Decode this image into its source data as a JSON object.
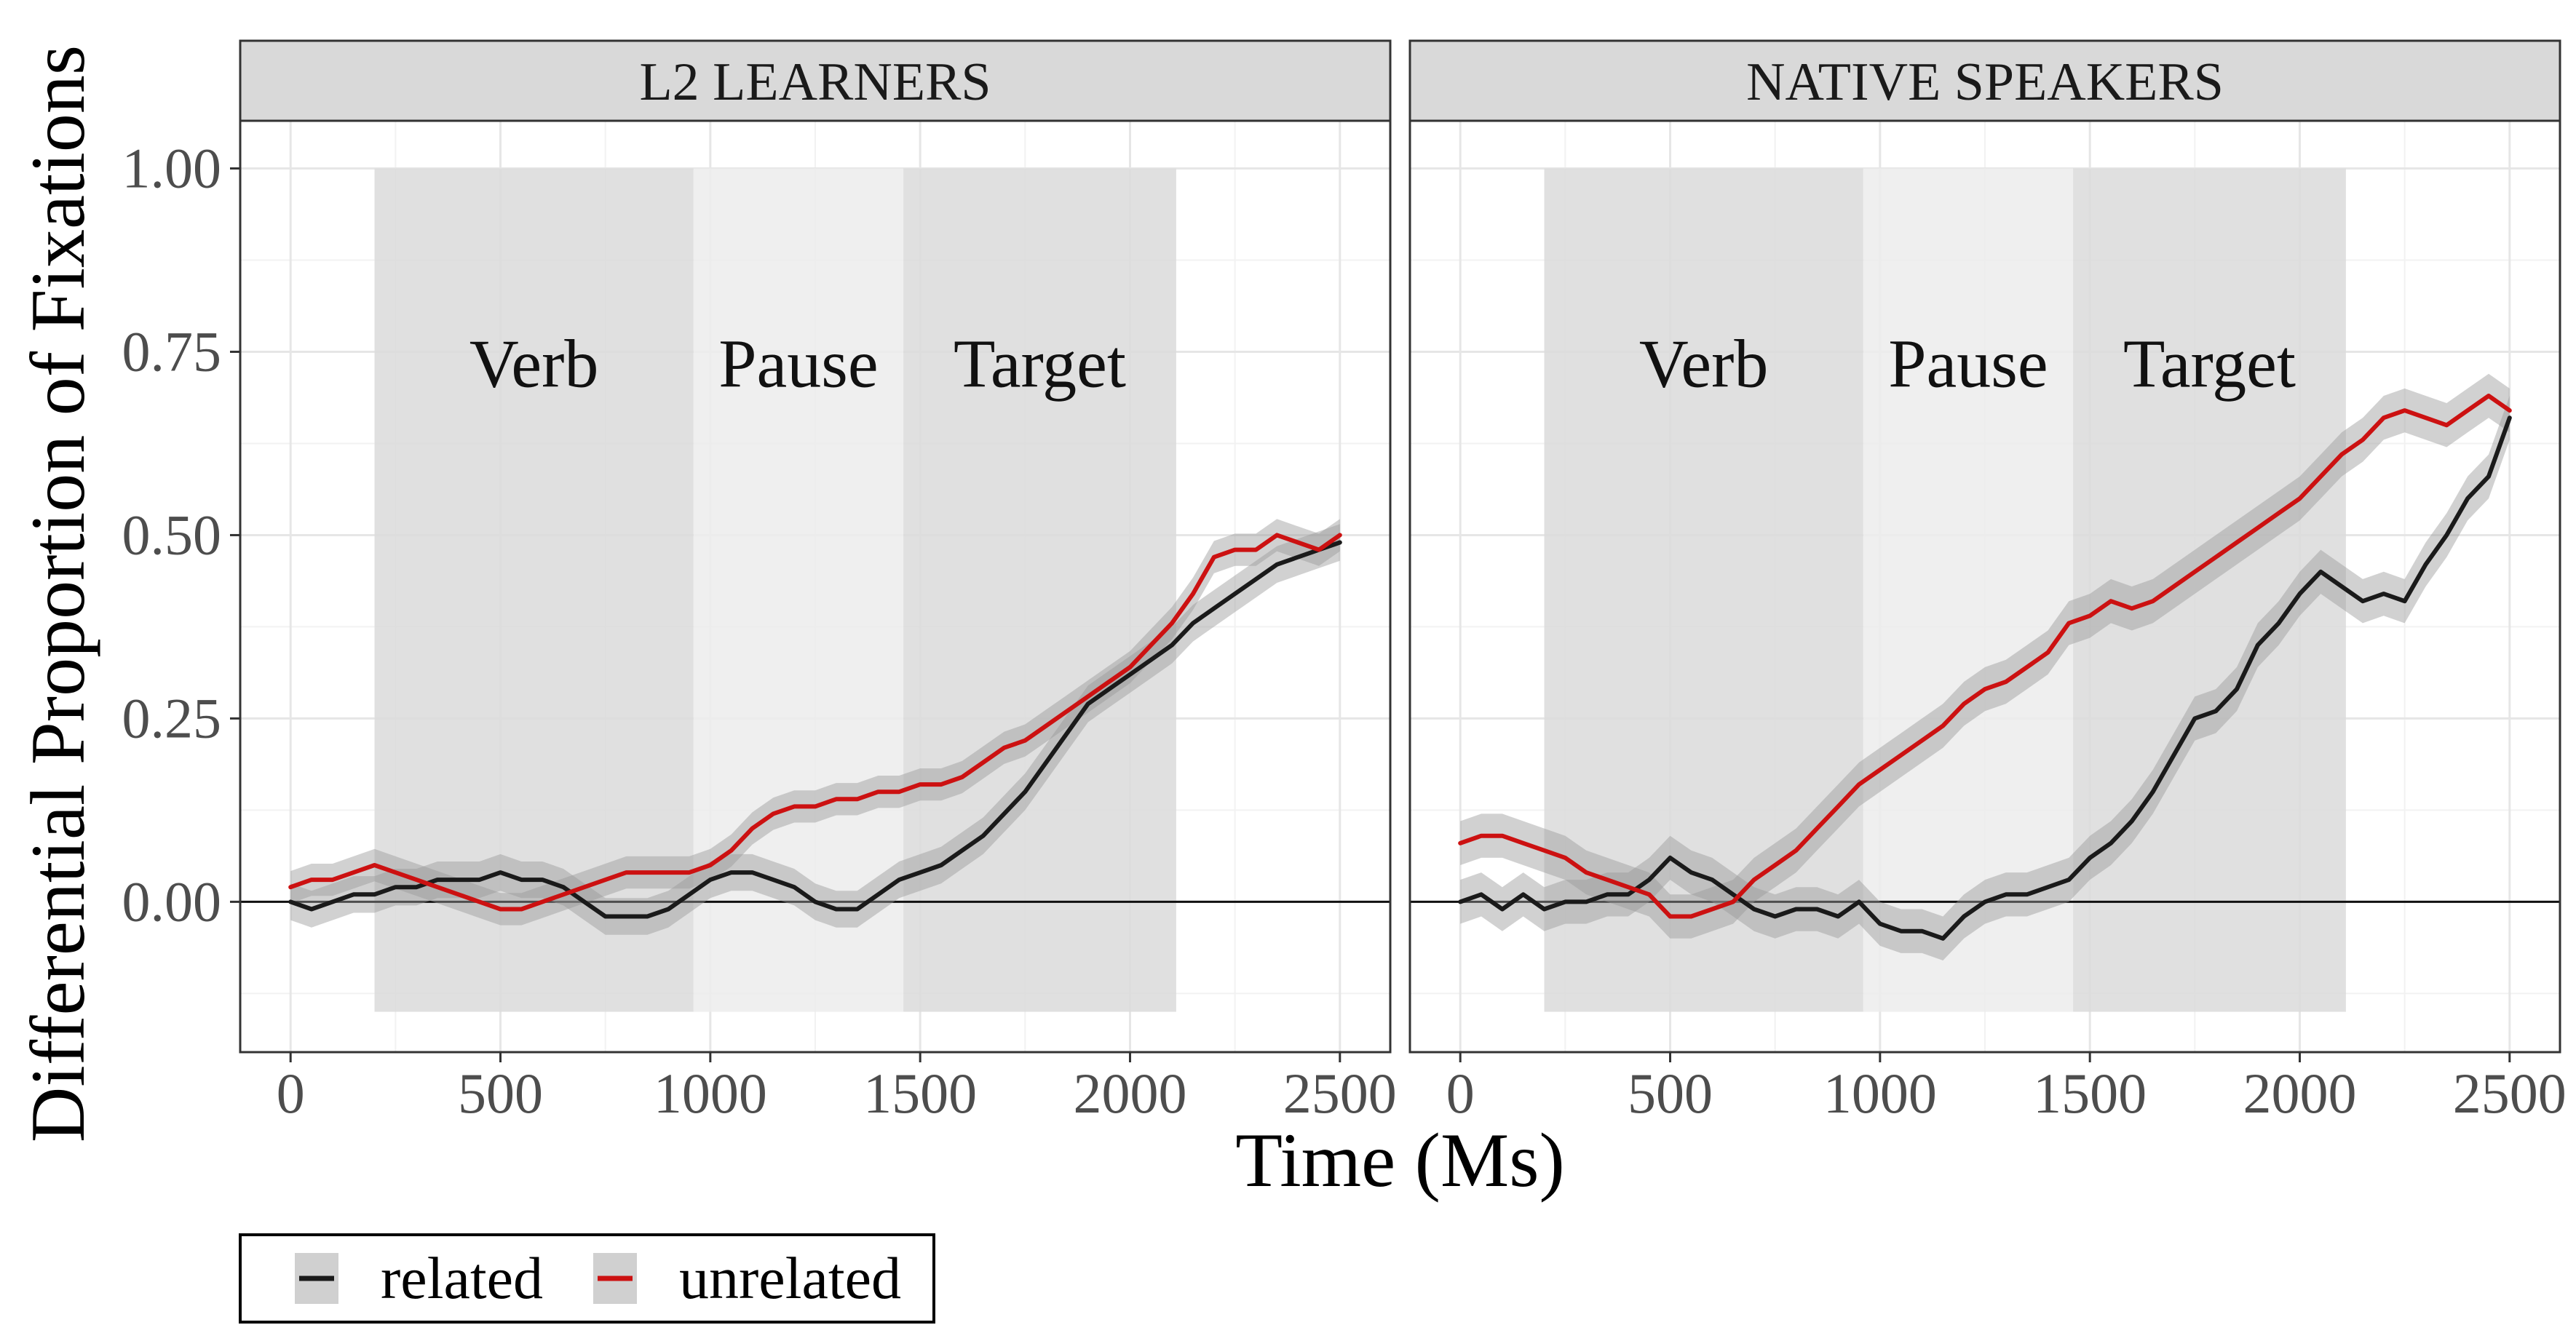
{
  "chart_data": {
    "type": "line",
    "ylabel": "Differential Proportion of Fixations",
    "xlabel": "Time (Ms)",
    "xlim": [
      -120,
      2620
    ],
    "ylim": [
      -0.205,
      1.065
    ],
    "x_ticks": [
      0,
      500,
      1000,
      1500,
      2000,
      2500
    ],
    "x_tick_labels": [
      "0",
      "500",
      "1000",
      "1500",
      "2000",
      "2500"
    ],
    "y_ticks": [
      0,
      0.25,
      0.5,
      0.75,
      1.0
    ],
    "y_tick_labels": [
      "0.00",
      "0.25",
      "0.50",
      "0.75",
      "1.00"
    ],
    "grid": true,
    "reference_line_y": 0,
    "regions": [
      {
        "label": "Verb",
        "x0": 200,
        "x1": 960,
        "y0": -0.15,
        "y1": 1.0,
        "shade": "dark"
      },
      {
        "label": "Pause",
        "x0": 960,
        "x1": 1460,
        "y0": -0.15,
        "y1": 1.0,
        "shade": "light"
      },
      {
        "label": "Target",
        "x0": 1460,
        "x1": 2110,
        "y0": -0.15,
        "y1": 1.0,
        "shade": "dark"
      }
    ],
    "legend": {
      "position": "bottom-left",
      "entries": [
        {
          "name": "related",
          "color": "#1a1a1a"
        },
        {
          "name": "unrelated",
          "color": "#cc1111"
        }
      ]
    },
    "panels": [
      {
        "title": "L2 LEARNERS",
        "series": [
          {
            "name": "related",
            "color": "#1a1a1a",
            "ribbon": 0.025,
            "x": [
              0,
              50,
              100,
              150,
              200,
              250,
              300,
              350,
              400,
              450,
              500,
              550,
              600,
              650,
              700,
              750,
              800,
              850,
              900,
              950,
              1000,
              1050,
              1100,
              1150,
              1200,
              1250,
              1300,
              1350,
              1400,
              1450,
              1500,
              1550,
              1600,
              1650,
              1700,
              1750,
              1800,
              1850,
              1900,
              1950,
              2000,
              2050,
              2100,
              2150,
              2200,
              2250,
              2300,
              2350,
              2400,
              2450,
              2500
            ],
            "y": [
              0.0,
              -0.01,
              0.0,
              0.01,
              0.01,
              0.02,
              0.02,
              0.03,
              0.03,
              0.03,
              0.04,
              0.03,
              0.03,
              0.02,
              0.0,
              -0.02,
              -0.02,
              -0.02,
              -0.01,
              0.01,
              0.03,
              0.04,
              0.04,
              0.03,
              0.02,
              0.0,
              -0.01,
              -0.01,
              0.01,
              0.03,
              0.04,
              0.05,
              0.07,
              0.09,
              0.12,
              0.15,
              0.19,
              0.23,
              0.27,
              0.29,
              0.31,
              0.33,
              0.35,
              0.38,
              0.4,
              0.42,
              0.44,
              0.46,
              0.47,
              0.48,
              0.49
            ]
          },
          {
            "name": "unrelated",
            "color": "#cc1111",
            "ribbon": 0.022,
            "x": [
              0,
              50,
              100,
              150,
              200,
              250,
              300,
              350,
              400,
              450,
              500,
              550,
              600,
              650,
              700,
              750,
              800,
              850,
              900,
              950,
              1000,
              1050,
              1100,
              1150,
              1200,
              1250,
              1300,
              1350,
              1400,
              1450,
              1500,
              1550,
              1600,
              1650,
              1700,
              1750,
              1800,
              1850,
              1900,
              1950,
              2000,
              2050,
              2100,
              2150,
              2200,
              2250,
              2300,
              2350,
              2400,
              2450,
              2500
            ],
            "y": [
              0.02,
              0.03,
              0.03,
              0.04,
              0.05,
              0.04,
              0.03,
              0.02,
              0.01,
              0.0,
              -0.01,
              -0.01,
              0.0,
              0.01,
              0.02,
              0.03,
              0.04,
              0.04,
              0.04,
              0.04,
              0.05,
              0.07,
              0.1,
              0.12,
              0.13,
              0.13,
              0.14,
              0.14,
              0.15,
              0.15,
              0.16,
              0.16,
              0.17,
              0.19,
              0.21,
              0.22,
              0.24,
              0.26,
              0.28,
              0.3,
              0.32,
              0.35,
              0.38,
              0.42,
              0.47,
              0.48,
              0.48,
              0.5,
              0.49,
              0.48,
              0.5
            ]
          }
        ]
      },
      {
        "title": "NATIVE SPEAKERS",
        "series": [
          {
            "name": "related",
            "color": "#1a1a1a",
            "ribbon": 0.03,
            "x": [
              0,
              50,
              100,
              150,
              200,
              250,
              300,
              350,
              400,
              450,
              500,
              550,
              600,
              650,
              700,
              750,
              800,
              850,
              900,
              950,
              1000,
              1050,
              1100,
              1150,
              1200,
              1250,
              1300,
              1350,
              1400,
              1450,
              1500,
              1550,
              1600,
              1650,
              1700,
              1750,
              1800,
              1850,
              1900,
              1950,
              2000,
              2050,
              2100,
              2150,
              2200,
              2250,
              2300,
              2350,
              2400,
              2450,
              2500
            ],
            "y": [
              0.0,
              0.01,
              -0.01,
              0.01,
              -0.01,
              0.0,
              0.0,
              0.01,
              0.01,
              0.03,
              0.06,
              0.04,
              0.03,
              0.01,
              -0.01,
              -0.02,
              -0.01,
              -0.01,
              -0.02,
              0.0,
              -0.03,
              -0.04,
              -0.04,
              -0.05,
              -0.02,
              0.0,
              0.01,
              0.01,
              0.02,
              0.03,
              0.06,
              0.08,
              0.11,
              0.15,
              0.2,
              0.25,
              0.26,
              0.29,
              0.35,
              0.38,
              0.42,
              0.45,
              0.43,
              0.41,
              0.42,
              0.41,
              0.46,
              0.5,
              0.55,
              0.58,
              0.66
            ]
          },
          {
            "name": "unrelated",
            "color": "#cc1111",
            "ribbon": 0.03,
            "x": [
              0,
              50,
              100,
              150,
              200,
              250,
              300,
              350,
              400,
              450,
              500,
              550,
              600,
              650,
              700,
              750,
              800,
              850,
              900,
              950,
              1000,
              1050,
              1100,
              1150,
              1200,
              1250,
              1300,
              1350,
              1400,
              1450,
              1500,
              1550,
              1600,
              1650,
              1700,
              1750,
              1800,
              1850,
              1900,
              1950,
              2000,
              2050,
              2100,
              2150,
              2200,
              2250,
              2300,
              2350,
              2400,
              2450,
              2500
            ],
            "y": [
              0.08,
              0.09,
              0.09,
              0.08,
              0.07,
              0.06,
              0.04,
              0.03,
              0.02,
              0.01,
              -0.02,
              -0.02,
              -0.01,
              0.0,
              0.03,
              0.05,
              0.07,
              0.1,
              0.13,
              0.16,
              0.18,
              0.2,
              0.22,
              0.24,
              0.27,
              0.29,
              0.3,
              0.32,
              0.34,
              0.38,
              0.39,
              0.41,
              0.4,
              0.41,
              0.43,
              0.45,
              0.47,
              0.49,
              0.51,
              0.53,
              0.55,
              0.58,
              0.61,
              0.63,
              0.66,
              0.67,
              0.66,
              0.65,
              0.67,
              0.69,
              0.67
            ]
          }
        ]
      }
    ]
  }
}
